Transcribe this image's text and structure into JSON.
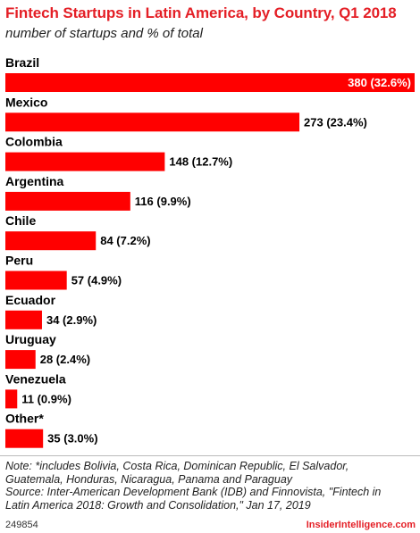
{
  "header": {
    "title": "Fintech Startups in Latin America, by Country, Q1 2018",
    "subtitle": "number of startups and % of total"
  },
  "chart_data": {
    "type": "bar",
    "orientation": "horizontal",
    "categories": [
      "Brazil",
      "Mexico",
      "Colombia",
      "Argentina",
      "Chile",
      "Peru",
      "Ecuador",
      "Uruguay",
      "Venezuela",
      "Other*"
    ],
    "values": [
      380,
      273,
      148,
      116,
      84,
      57,
      34,
      28,
      11,
      35
    ],
    "data_labels": [
      "380 (32.6%)",
      "273 (23.4%)",
      "148 (12.7%)",
      "116 (9.9%)",
      "84 (7.2%)",
      "57 (4.9%)",
      "34 (2.9%)",
      "28 (2.4%)",
      "11 (0.9%)",
      "35 (3.0%)"
    ],
    "title": "Fintech Startups in Latin America, by Country, Q1 2018",
    "subtitle": "number of startups and % of total",
    "bar_color": "#ff0000",
    "xlim": [
      0,
      380
    ],
    "grid": false,
    "legend": "none"
  },
  "notes": {
    "line1": "Note: *includes Bolivia, Costa Rica, Dominican Republic, El Salvador,",
    "line2": "Guatemala, Honduras, Nicaragua, Panama and Paraguay",
    "line3": "Source: Inter-American Development Bank (IDB) and Finnovista, \"Fintech in",
    "line4": "Latin America 2018: Growth and Consolidation,\" Jan 17, 2019"
  },
  "footer": {
    "id": "249854",
    "brand": "InsiderIntelligence.com"
  }
}
